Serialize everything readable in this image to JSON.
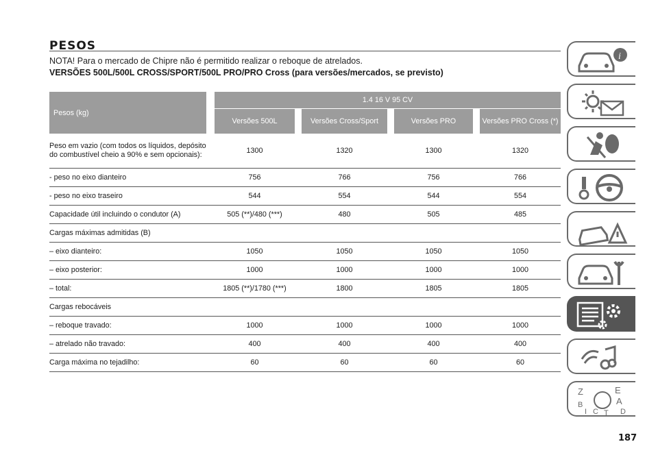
{
  "heading": "PESOS",
  "note": "NOTA! Para o mercado de Chipre não é permitido realizar o reboque de atrelados.",
  "subheading": "VERSÕES 500L/500L CROSS/SPORT/500L PRO/PRO Cross (para versões/mercados, se previsto)",
  "table": {
    "row_header": "Pesos (kg)",
    "engine": "1.4 16 V 95 CV",
    "columns": [
      "Versões 500L",
      "Versões Cross/Sport",
      "Versões PRO",
      "Versões PRO Cross (*)"
    ],
    "rows": [
      {
        "label": "Peso em vazio (com todos os líquidos, depósito do combustível cheio a 90% e sem opcionais):",
        "values": [
          "1300",
          "1320",
          "1300",
          "1320"
        ]
      },
      {
        "label": "- peso no eixo dianteiro",
        "values": [
          "756",
          "766",
          "756",
          "766"
        ]
      },
      {
        "label": "- peso no eixo traseiro",
        "values": [
          "544",
          "554",
          "544",
          "554"
        ]
      },
      {
        "label": "Capacidade útil incluindo o condutor (A)",
        "values": [
          "505 (**)/480 (***)",
          "480",
          "505",
          "485"
        ]
      },
      {
        "label": "Cargas máximas admitidas (B)",
        "values": [
          "",
          "",
          "",
          ""
        ]
      },
      {
        "label": "– eixo dianteiro:",
        "values": [
          "1050",
          "1050",
          "1050",
          "1050"
        ]
      },
      {
        "label": "– eixo posterior:",
        "values": [
          "1000",
          "1000",
          "1000",
          "1000"
        ]
      },
      {
        "label": "– total:",
        "values": [
          "1805 (**)/1780 (***)",
          "1800",
          "1805",
          "1805"
        ]
      },
      {
        "label": "Cargas rebocáveis",
        "values": [
          "",
          "",
          "",
          ""
        ]
      },
      {
        "label": "– reboque travado:",
        "values": [
          "1000",
          "1000",
          "1000",
          "1000"
        ]
      },
      {
        "label": "– atrelado não travado:",
        "values": [
          "400",
          "400",
          "400",
          "400"
        ]
      },
      {
        "label": "Carga máxima no tejadilho:",
        "values": [
          "60",
          "60",
          "60",
          "60"
        ]
      }
    ]
  },
  "sidebar": {
    "tabs": [
      {
        "name": "car-info-icon",
        "active": false
      },
      {
        "name": "warning-lights-icon",
        "active": false
      },
      {
        "name": "safety-airbag-icon",
        "active": false
      },
      {
        "name": "steering-wheel-icon",
        "active": false
      },
      {
        "name": "emergency-icon",
        "active": false
      },
      {
        "name": "maintenance-icon",
        "active": false
      },
      {
        "name": "technical-data-icon",
        "active": true
      },
      {
        "name": "multimedia-icon",
        "active": false
      },
      {
        "name": "index-icon",
        "active": false
      }
    ],
    "index_letters": [
      "Z",
      "E",
      "B",
      "A",
      "I",
      "C",
      "T",
      "D"
    ]
  },
  "page_number": "187",
  "colors": {
    "header_bg": "#9c9c9c",
    "active_tab": "#555555",
    "tab_border": "#6a6a6a"
  }
}
